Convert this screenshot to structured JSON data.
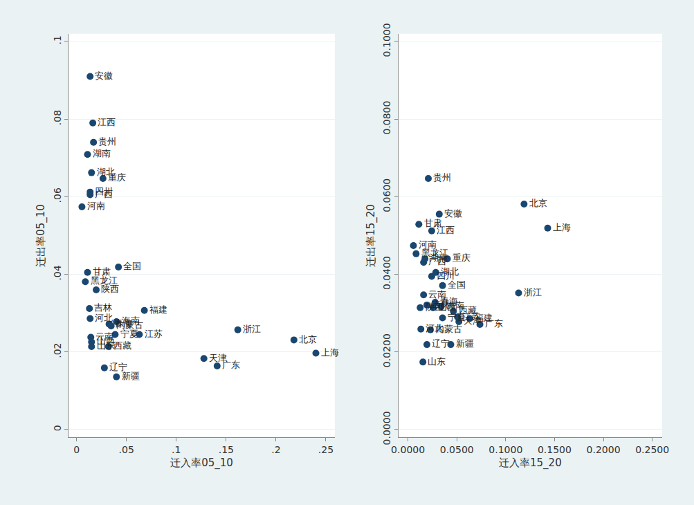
{
  "chart_data": [
    {
      "type": "scatter",
      "x_label": "迁入率05_10",
      "y_label": "迁出率05_10",
      "color": "#1a476f",
      "marker": "circle",
      "grid": true,
      "labels": [
        "安徽",
        "江西",
        "贵州",
        "湖南",
        "湖北",
        "重庆",
        "四川",
        "广西",
        "河南",
        "甘肃",
        "全国",
        "黑龙江",
        "陕西",
        "吉林",
        "福建",
        "河北",
        "海南",
        "青海",
        "内蒙古",
        "宁夏",
        "江苏",
        "云南",
        "山西",
        "山东",
        "西藏",
        "天津",
        "广东",
        "浙江",
        "北京",
        "上海",
        "辽宁",
        "新疆"
      ],
      "x": [
        0.0136,
        0.0163,
        0.017,
        0.011,
        0.015,
        0.0265,
        0.0136,
        0.0136,
        0.0054,
        0.011,
        0.042,
        0.0088,
        0.0197,
        0.0129,
        0.068,
        0.0136,
        0.04,
        0.0326,
        0.0347,
        0.0387,
        0.063,
        0.0143,
        0.015,
        0.015,
        0.032,
        0.1277,
        0.141,
        0.1617,
        0.218,
        0.24,
        0.0279,
        0.04
      ],
      "y": [
        0.091,
        0.079,
        0.074,
        0.0709,
        0.0662,
        0.0647,
        0.0612,
        0.0605,
        0.0574,
        0.0405,
        0.0419,
        0.0381,
        0.036,
        0.0312,
        0.0307,
        0.0286,
        0.0278,
        0.0272,
        0.0267,
        0.0245,
        0.0245,
        0.0238,
        0.0226,
        0.0214,
        0.0214,
        0.0183,
        0.0164,
        0.0257,
        0.0231,
        0.0197,
        0.0159,
        0.0136
      ],
      "xlim": [
        -0.008,
        0.259
      ],
      "ylim": [
        -0.002,
        0.102
      ],
      "xticks": [
        0,
        {
          "value": 0.05,
          "label": ".05"
        },
        {
          "value": 0.1,
          "label": ".1"
        },
        {
          "value": 0.15,
          "label": ".15"
        },
        {
          "value": 0.2,
          "label": ".2"
        },
        {
          "value": 0.25,
          "label": ".25"
        }
      ],
      "yticks": [
        0,
        {
          "value": 0.02,
          "label": ".02"
        },
        {
          "value": 0.04,
          "label": ".04"
        },
        {
          "value": 0.06,
          "label": ".06"
        },
        {
          "value": 0.08,
          "label": ".08"
        },
        {
          "value": 0.1,
          "label": ".1"
        }
      ]
    },
    {
      "type": "scatter",
      "x_label": "迁入率15_20",
      "y_label": "迁出率15_20",
      "color": "#1a476f",
      "marker": "circle",
      "grid": true,
      "labels": [
        "贵州",
        "北京",
        "安徽",
        "上海",
        "甘肃",
        "江西",
        "河南",
        "黑龙江",
        "湖南",
        "广西",
        "重庆",
        "湖北",
        "四川",
        "全国",
        "浙江",
        "云南",
        "青海",
        "吉林",
        "陕西",
        "山西",
        "海南",
        "西藏",
        "宁夏",
        "江苏",
        "福建",
        "天津",
        "广东",
        "河北",
        "内蒙古",
        "辽宁",
        "新疆",
        "山东"
      ],
      "x": [
        0.0208,
        0.1188,
        0.032,
        0.143,
        0.0111,
        0.0243,
        0.0056,
        0.0083,
        0.0174,
        0.016,
        0.0403,
        0.0285,
        0.0243,
        0.0354,
        0.1132,
        0.016,
        0.0278,
        0.0194,
        0.0125,
        0.0257,
        0.034,
        0.0465,
        0.0354,
        0.0507,
        0.0632,
        0.0521,
        0.0736,
        0.0132,
        0.0229,
        0.0194,
        0.0438,
        0.0153
      ],
      "y": [
        0.0647,
        0.0581,
        0.0555,
        0.0519,
        0.0529,
        0.0512,
        0.0474,
        0.0453,
        0.044,
        0.0431,
        0.044,
        0.0405,
        0.0395,
        0.0371,
        0.0352,
        0.0347,
        0.0328,
        0.0321,
        0.0314,
        0.0314,
        0.0317,
        0.0305,
        0.0288,
        0.029,
        0.0286,
        0.0278,
        0.0271,
        0.0259,
        0.0257,
        0.0219,
        0.0219,
        0.0174
      ],
      "xlim": [
        -0.0097,
        0.26
      ],
      "ylim": [
        -0.002,
        0.102
      ],
      "xticks": [
        {
          "value": 0,
          "label": "0.0000"
        },
        {
          "value": 0.05,
          "label": "0.0500"
        },
        {
          "value": 0.1,
          "label": "0.1000"
        },
        {
          "value": 0.15,
          "label": "0.1500"
        },
        {
          "value": 0.2,
          "label": "0.2000"
        },
        {
          "value": 0.25,
          "label": "0.2500"
        }
      ],
      "yticks": [
        {
          "value": 0,
          "label": "0.0000"
        },
        {
          "value": 0.02,
          "label": "0.0200"
        },
        {
          "value": 0.04,
          "label": "0.0400"
        },
        {
          "value": 0.06,
          "label": "0.0600"
        },
        {
          "value": 0.08,
          "label": "0.0800"
        },
        {
          "value": 0.1,
          "label": "0.1000"
        }
      ]
    }
  ]
}
